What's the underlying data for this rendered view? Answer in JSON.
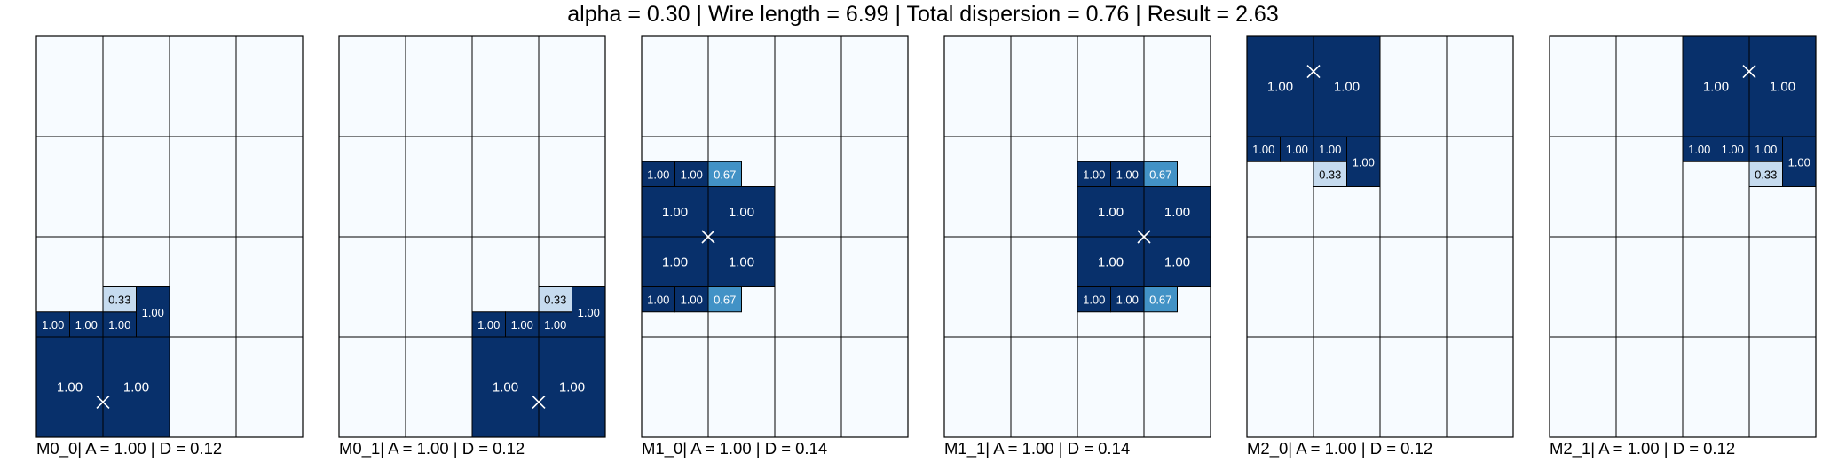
{
  "title": "alpha = 0.30 | Wire length = 6.99 | Total dispersion = 0.76 | Result = 2.63",
  "colors": {
    "empty": "#f7fbff",
    "high": "#08306b",
    "mid": "#4292c6",
    "low": "#c6dbef",
    "border": "#000000",
    "text_dark": "#000000",
    "text_light": "#ffffff"
  },
  "chart_data": [
    {
      "type": "heatmap",
      "name": "M0_0",
      "label": "M0_0| A = 1.00 | D = 0.12",
      "grid": {
        "cols": 4,
        "rows": 4
      },
      "center": {
        "x": 1.0,
        "y": 0.35
      },
      "cells": [
        {
          "x0": 0,
          "y0": 0,
          "x1": 1,
          "y1": 1,
          "value": "1.00"
        },
        {
          "x0": 1,
          "y0": 0,
          "x1": 2,
          "y1": 1,
          "value": "1.00"
        },
        {
          "x0": 0,
          "y0": 1,
          "x1": 0.5,
          "y1": 1.25,
          "value": "1.00"
        },
        {
          "x0": 0.5,
          "y0": 1,
          "x1": 1,
          "y1": 1.25,
          "value": "1.00"
        },
        {
          "x0": 1,
          "y0": 1,
          "x1": 1.5,
          "y1": 1.25,
          "value": "1.00"
        },
        {
          "x0": 1,
          "y0": 1.25,
          "x1": 1.5,
          "y1": 1.5,
          "value": "0.33"
        },
        {
          "x0": 1.5,
          "y0": 1,
          "x1": 2,
          "y1": 1.5,
          "value": "1.00"
        }
      ]
    },
    {
      "type": "heatmap",
      "name": "M0_1",
      "label": "M0_1| A = 1.00 | D = 0.12",
      "grid": {
        "cols": 4,
        "rows": 4
      },
      "center": {
        "x": 3.0,
        "y": 0.35
      },
      "cells": [
        {
          "x0": 2,
          "y0": 0,
          "x1": 3,
          "y1": 1,
          "value": "1.00"
        },
        {
          "x0": 3,
          "y0": 0,
          "x1": 4,
          "y1": 1,
          "value": "1.00"
        },
        {
          "x0": 2,
          "y0": 1,
          "x1": 2.5,
          "y1": 1.25,
          "value": "1.00"
        },
        {
          "x0": 2.5,
          "y0": 1,
          "x1": 3,
          "y1": 1.25,
          "value": "1.00"
        },
        {
          "x0": 3,
          "y0": 1,
          "x1": 3.5,
          "y1": 1.25,
          "value": "1.00"
        },
        {
          "x0": 3,
          "y0": 1.25,
          "x1": 3.5,
          "y1": 1.5,
          "value": "0.33"
        },
        {
          "x0": 3.5,
          "y0": 1,
          "x1": 4,
          "y1": 1.5,
          "value": "1.00"
        }
      ]
    },
    {
      "type": "heatmap",
      "name": "M1_0",
      "label": "M1_0| A = 1.00 | D = 0.14",
      "grid": {
        "cols": 4,
        "rows": 4
      },
      "center": {
        "x": 1.0,
        "y": 2.0
      },
      "cells": [
        {
          "x0": 0,
          "y0": 2.5,
          "x1": 0.5,
          "y1": 2.75,
          "value": "1.00"
        },
        {
          "x0": 0.5,
          "y0": 2.5,
          "x1": 1,
          "y1": 2.75,
          "value": "1.00"
        },
        {
          "x0": 1,
          "y0": 2.5,
          "x1": 1.5,
          "y1": 2.75,
          "value": "0.67"
        },
        {
          "x0": 0,
          "y0": 2,
          "x1": 1,
          "y1": 2.5,
          "value": "1.00"
        },
        {
          "x0": 1,
          "y0": 2,
          "x1": 2,
          "y1": 2.5,
          "value": "1.00"
        },
        {
          "x0": 0,
          "y0": 1.5,
          "x1": 1,
          "y1": 2,
          "value": "1.00"
        },
        {
          "x0": 1,
          "y0": 1.5,
          "x1": 2,
          "y1": 2,
          "value": "1.00"
        },
        {
          "x0": 0,
          "y0": 1.25,
          "x1": 0.5,
          "y1": 1.5,
          "value": "1.00"
        },
        {
          "x0": 0.5,
          "y0": 1.25,
          "x1": 1,
          "y1": 1.5,
          "value": "1.00"
        },
        {
          "x0": 1,
          "y0": 1.25,
          "x1": 1.5,
          "y1": 1.5,
          "value": "0.67"
        }
      ]
    },
    {
      "type": "heatmap",
      "name": "M1_1",
      "label": "M1_1| A = 1.00 | D = 0.14",
      "grid": {
        "cols": 4,
        "rows": 4
      },
      "center": {
        "x": 3.0,
        "y": 2.0
      },
      "cells": [
        {
          "x0": 2,
          "y0": 2.5,
          "x1": 2.5,
          "y1": 2.75,
          "value": "1.00"
        },
        {
          "x0": 2.5,
          "y0": 2.5,
          "x1": 3,
          "y1": 2.75,
          "value": "1.00"
        },
        {
          "x0": 3,
          "y0": 2.5,
          "x1": 3.5,
          "y1": 2.75,
          "value": "0.67"
        },
        {
          "x0": 2,
          "y0": 2,
          "x1": 3,
          "y1": 2.5,
          "value": "1.00"
        },
        {
          "x0": 3,
          "y0": 2,
          "x1": 4,
          "y1": 2.5,
          "value": "1.00"
        },
        {
          "x0": 2,
          "y0": 1.5,
          "x1": 3,
          "y1": 2,
          "value": "1.00"
        },
        {
          "x0": 3,
          "y0": 1.5,
          "x1": 4,
          "y1": 2,
          "value": "1.00"
        },
        {
          "x0": 2,
          "y0": 1.25,
          "x1": 2.5,
          "y1": 1.5,
          "value": "1.00"
        },
        {
          "x0": 2.5,
          "y0": 1.25,
          "x1": 3,
          "y1": 1.5,
          "value": "1.00"
        },
        {
          "x0": 3,
          "y0": 1.25,
          "x1": 3.5,
          "y1": 1.5,
          "value": "0.67"
        }
      ]
    },
    {
      "type": "heatmap",
      "name": "M2_0",
      "label": "M2_0| A = 1.00 | D = 0.12",
      "grid": {
        "cols": 4,
        "rows": 4
      },
      "center": {
        "x": 1.0,
        "y": 3.65
      },
      "cells": [
        {
          "x0": 0,
          "y0": 3,
          "x1": 1,
          "y1": 4,
          "value": "1.00"
        },
        {
          "x0": 1,
          "y0": 3,
          "x1": 2,
          "y1": 4,
          "value": "1.00"
        },
        {
          "x0": 0,
          "y0": 2.75,
          "x1": 0.5,
          "y1": 3,
          "value": "1.00"
        },
        {
          "x0": 0.5,
          "y0": 2.75,
          "x1": 1,
          "y1": 3,
          "value": "1.00"
        },
        {
          "x0": 1,
          "y0": 2.75,
          "x1": 1.5,
          "y1": 3,
          "value": "1.00"
        },
        {
          "x0": 1,
          "y0": 2.5,
          "x1": 1.5,
          "y1": 2.75,
          "value": "0.33"
        },
        {
          "x0": 1.5,
          "y0": 2.5,
          "x1": 2,
          "y1": 3,
          "value": "1.00"
        }
      ]
    },
    {
      "type": "heatmap",
      "name": "M2_1",
      "label": "M2_1| A = 1.00 | D = 0.12",
      "grid": {
        "cols": 4,
        "rows": 4
      },
      "center": {
        "x": 3.0,
        "y": 3.65
      },
      "cells": [
        {
          "x0": 2,
          "y0": 3,
          "x1": 3,
          "y1": 4,
          "value": "1.00"
        },
        {
          "x0": 3,
          "y0": 3,
          "x1": 4,
          "y1": 4,
          "value": "1.00"
        },
        {
          "x0": 2,
          "y0": 2.75,
          "x1": 2.5,
          "y1": 3,
          "value": "1.00"
        },
        {
          "x0": 2.5,
          "y0": 2.75,
          "x1": 3,
          "y1": 3,
          "value": "1.00"
        },
        {
          "x0": 3,
          "y0": 2.75,
          "x1": 3.5,
          "y1": 3,
          "value": "1.00"
        },
        {
          "x0": 3,
          "y0": 2.5,
          "x1": 3.5,
          "y1": 2.75,
          "value": "0.33"
        },
        {
          "x0": 3.5,
          "y0": 2.5,
          "x1": 4,
          "y1": 3,
          "value": "1.00"
        }
      ]
    }
  ]
}
